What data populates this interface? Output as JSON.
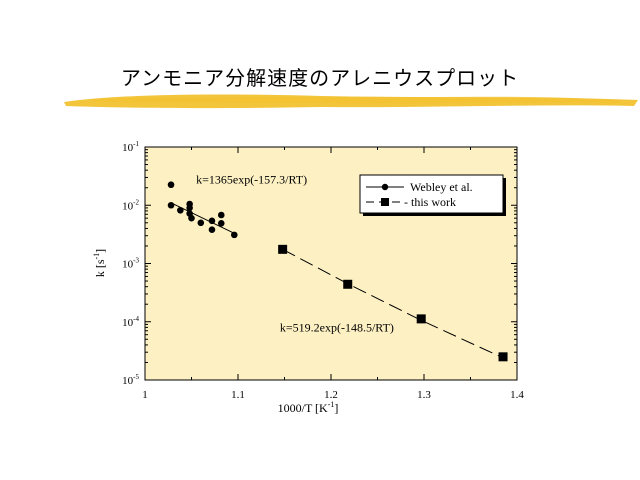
{
  "slide": {
    "title": "アンモニア分解速度のアレニウスプロット",
    "brush_color": "#F2C230"
  },
  "chart_data": {
    "type": "scatter",
    "xlabel": "1000/T  [K",
    "xlabel_sup": "-1",
    "xlabel_end": "]",
    "ylabel": "k  [s",
    "ylabel_sup": "-1",
    "ylabel_end": "]",
    "x_ticks": [
      "1",
      "1.1",
      "1.2",
      "1.3",
      "1.4"
    ],
    "xlim": [
      1.0,
      1.4
    ],
    "ylim_log10": [
      -5,
      -1
    ],
    "y_ticks": [
      {
        "base": "10",
        "exp": "-1"
      },
      {
        "base": "10",
        "exp": "-2"
      },
      {
        "base": "10",
        "exp": "-3"
      },
      {
        "base": "10",
        "exp": "-4"
      },
      {
        "base": "10",
        "exp": "-5"
      }
    ],
    "yscale": "log",
    "plot_background": "#FDF1C4",
    "legend_position": "top-right",
    "series": [
      {
        "name": "Webley et al.",
        "marker": "circle",
        "line": "solid",
        "points": [
          [
            1.028,
            0.0225
          ],
          [
            1.028,
            0.01
          ],
          [
            1.038,
            0.0082
          ],
          [
            1.048,
            0.0105
          ],
          [
            1.048,
            0.009
          ],
          [
            1.048,
            0.0072
          ],
          [
            1.05,
            0.006
          ],
          [
            1.06,
            0.005
          ],
          [
            1.072,
            0.0054
          ],
          [
            1.072,
            0.0038
          ],
          [
            1.082,
            0.0068
          ],
          [
            1.082,
            0.0049
          ],
          [
            1.096,
            0.0031
          ]
        ],
        "fit": [
          [
            1.028,
            0.011
          ],
          [
            1.096,
            0.0033
          ]
        ]
      },
      {
        "name": "- this work",
        "marker": "square",
        "line": "dashed",
        "points": [
          [
            1.148,
            0.00175
          ],
          [
            1.218,
            0.00044
          ],
          [
            1.297,
            0.000112
          ],
          [
            1.385,
            2.5e-05
          ]
        ],
        "fit": [
          [
            1.148,
            0.00175
          ],
          [
            1.218,
            0.00045
          ],
          [
            1.297,
            0.000106
          ],
          [
            1.385,
            2.4e-05
          ]
        ]
      }
    ],
    "annotations": [
      {
        "text": "k=1365exp(-157.3/RT)",
        "x": 1.055,
        "y": 0.0235
      },
      {
        "text": "k=519.2exp(-148.5/RT)",
        "x": 1.145,
        "y": 6.8e-05
      }
    ]
  }
}
